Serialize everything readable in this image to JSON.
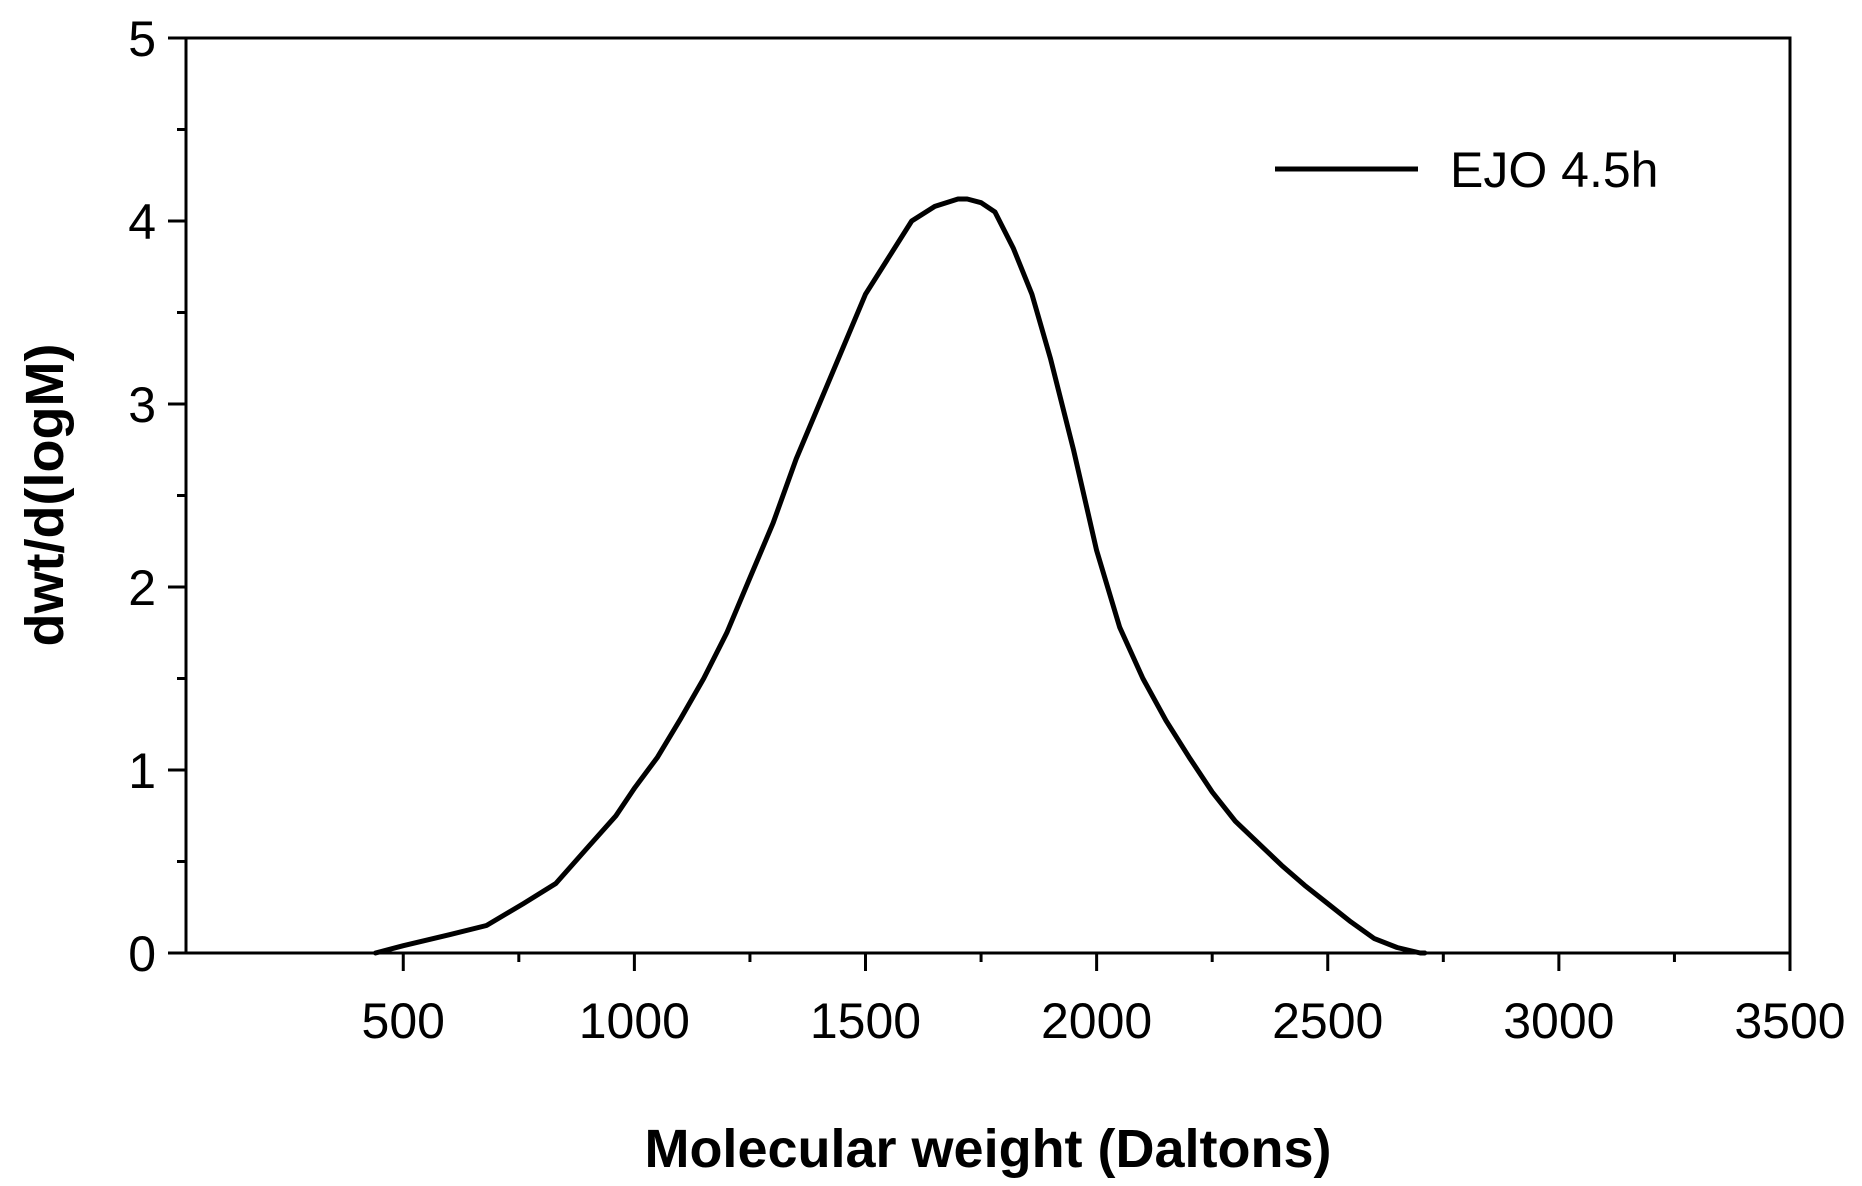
{
  "chart_data": {
    "type": "line",
    "xlabel": "Molecular weight (Daltons)",
    "ylabel": "dwt/d(logM)",
    "xlim": [
      30,
      3500
    ],
    "ylim": [
      0,
      5
    ],
    "xticks": [
      500,
      1000,
      1500,
      2000,
      2500,
      3000,
      3500
    ],
    "yticks": [
      0,
      1,
      2,
      3,
      4,
      5
    ],
    "grid": false,
    "legend_position": "top-right",
    "series": [
      {
        "name": "EJO 4.5h",
        "color": "#000000",
        "x": [
          440,
          500,
          600,
          680,
          760,
          830,
          900,
          960,
          1000,
          1050,
          1100,
          1150,
          1200,
          1250,
          1300,
          1350,
          1400,
          1450,
          1500,
          1550,
          1600,
          1650,
          1700,
          1720,
          1750,
          1780,
          1820,
          1860,
          1900,
          1950,
          2000,
          2050,
          2100,
          2150,
          2200,
          2250,
          2300,
          2350,
          2400,
          2450,
          2500,
          2550,
          2600,
          2650,
          2700,
          2710
        ],
        "y": [
          0.0,
          0.04,
          0.1,
          0.15,
          0.27,
          0.38,
          0.58,
          0.75,
          0.9,
          1.07,
          1.28,
          1.5,
          1.75,
          2.05,
          2.35,
          2.7,
          3.0,
          3.3,
          3.6,
          3.8,
          4.0,
          4.08,
          4.12,
          4.12,
          4.1,
          4.05,
          3.85,
          3.6,
          3.25,
          2.75,
          2.2,
          1.78,
          1.5,
          1.27,
          1.07,
          0.88,
          0.72,
          0.6,
          0.48,
          0.37,
          0.27,
          0.17,
          0.08,
          0.03,
          0.0,
          0.0
        ]
      }
    ]
  }
}
